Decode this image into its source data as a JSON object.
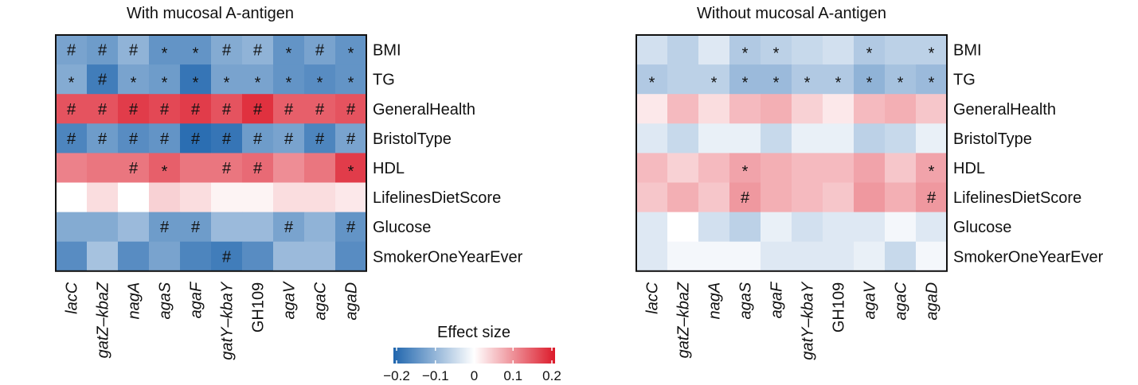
{
  "chart_data": [
    {
      "type": "heatmap",
      "title": "With mucosal A-antigen",
      "columns": [
        "lacC",
        "gatZ–kbaZ",
        "nagA",
        "agaS",
        "agaF",
        "gatY–kbaY",
        "GH109",
        "agaV",
        "agaC",
        "agaD"
      ],
      "column_italic": [
        true,
        true,
        true,
        true,
        true,
        true,
        false,
        true,
        true,
        true
      ],
      "rows": [
        "BMI",
        "TG",
        "GeneralHealth",
        "BristolType",
        "HDL",
        "LifelinesDietScore",
        "Glucose",
        "SmokerOneYearEver"
      ],
      "values": [
        [
          -0.12,
          -0.13,
          -0.1,
          -0.14,
          -0.14,
          -0.11,
          -0.1,
          -0.14,
          -0.12,
          -0.14
        ],
        [
          -0.11,
          -0.17,
          -0.12,
          -0.13,
          -0.18,
          -0.12,
          -0.12,
          -0.14,
          -0.15,
          -0.14
        ],
        [
          0.15,
          0.15,
          0.17,
          0.16,
          0.17,
          0.15,
          0.18,
          0.14,
          0.14,
          0.15
        ],
        [
          -0.16,
          -0.13,
          -0.15,
          -0.14,
          -0.19,
          -0.18,
          -0.13,
          -0.12,
          -0.16,
          -0.12
        ],
        [
          0.11,
          0.12,
          0.12,
          0.14,
          0.12,
          0.12,
          0.13,
          0.1,
          0.12,
          0.17
        ],
        [
          0.0,
          0.03,
          0.0,
          0.04,
          0.03,
          0.01,
          0.01,
          0.03,
          0.03,
          0.02
        ],
        [
          -0.11,
          -0.11,
          -0.09,
          -0.13,
          -0.13,
          -0.09,
          -0.09,
          -0.12,
          -0.1,
          -0.14
        ],
        [
          -0.15,
          -0.08,
          -0.15,
          -0.12,
          -0.16,
          -0.17,
          -0.15,
          -0.09,
          -0.09,
          -0.15
        ]
      ],
      "marks": [
        [
          "#",
          "#",
          "#",
          "*",
          "*",
          "#",
          "#",
          "*",
          "#",
          "*"
        ],
        [
          "*",
          "#",
          "*",
          "*",
          "*",
          "*",
          "*",
          "*",
          "*",
          "*"
        ],
        [
          "#",
          "#",
          "#",
          "#",
          "#",
          "#",
          "#",
          "#",
          "#",
          "#"
        ],
        [
          "#",
          "#",
          "#",
          "#",
          "#",
          "#",
          "#",
          "#",
          "#",
          "#"
        ],
        [
          "",
          "",
          "#",
          "*",
          "",
          "#",
          "#",
          "",
          "",
          "*"
        ],
        [
          "",
          "",
          "",
          "",
          "",
          "",
          "",
          "",
          "",
          ""
        ],
        [
          "",
          "",
          "",
          "#",
          "#",
          "",
          "",
          "#",
          "",
          "#"
        ],
        [
          "",
          "",
          "",
          "",
          "",
          "#",
          "",
          "",
          "",
          ""
        ]
      ]
    },
    {
      "type": "heatmap",
      "title": "Without mucosal A-antigen",
      "columns": [
        "lacC",
        "gatZ–kbaZ",
        "nagA",
        "agaS",
        "agaF",
        "gatY–kbaY",
        "GH109",
        "agaV",
        "agaC",
        "agaD"
      ],
      "column_italic": [
        true,
        true,
        true,
        true,
        true,
        true,
        false,
        true,
        true,
        true
      ],
      "rows": [
        "BMI",
        "TG",
        "GeneralHealth",
        "BristolType",
        "HDL",
        "LifelinesDietScore",
        "Glucose",
        "SmokerOneYearEver"
      ],
      "values": [
        [
          -0.04,
          -0.06,
          -0.03,
          -0.07,
          -0.06,
          -0.05,
          -0.04,
          -0.07,
          -0.06,
          -0.06
        ],
        [
          -0.07,
          -0.06,
          -0.06,
          -0.09,
          -0.09,
          -0.07,
          -0.07,
          -0.1,
          -0.08,
          -0.09
        ],
        [
          0.02,
          0.06,
          0.03,
          0.06,
          0.07,
          0.04,
          0.02,
          0.06,
          0.07,
          0.05
        ],
        [
          -0.03,
          -0.05,
          -0.02,
          -0.02,
          -0.05,
          -0.02,
          -0.02,
          -0.06,
          -0.05,
          -0.02
        ],
        [
          0.06,
          0.04,
          0.06,
          0.08,
          0.07,
          0.06,
          0.06,
          0.08,
          0.05,
          0.08
        ],
        [
          0.05,
          0.07,
          0.05,
          0.09,
          0.07,
          0.06,
          0.05,
          0.09,
          0.07,
          0.09
        ],
        [
          -0.03,
          0.0,
          -0.04,
          -0.06,
          -0.02,
          -0.04,
          -0.03,
          -0.03,
          -0.01,
          -0.03
        ],
        [
          -0.03,
          -0.01,
          -0.01,
          -0.01,
          -0.03,
          -0.03,
          -0.03,
          -0.02,
          -0.05,
          -0.01
        ]
      ],
      "marks": [
        [
          "",
          "",
          "",
          "*",
          "*",
          "",
          "",
          "*",
          "",
          "*"
        ],
        [
          "*",
          "",
          "*",
          "*",
          "*",
          "*",
          "*",
          "*",
          "*",
          "*"
        ],
        [
          "",
          "",
          "",
          "",
          "",
          "",
          "",
          "",
          "",
          ""
        ],
        [
          "",
          "",
          "",
          "",
          "",
          "",
          "",
          "",
          "",
          ""
        ],
        [
          "",
          "",
          "",
          "*",
          "",
          "",
          "",
          "",
          "",
          "*"
        ],
        [
          "",
          "",
          "",
          "#",
          "",
          "",
          "",
          "",
          "",
          "#"
        ],
        [
          "",
          "",
          "",
          "",
          "",
          "",
          "",
          "",
          "",
          ""
        ],
        [
          "",
          "",
          "",
          "",
          "",
          "",
          "",
          "",
          "",
          ""
        ]
      ]
    }
  ],
  "colorbar": {
    "title": "Effect size",
    "range": [
      -0.2,
      0.2
    ],
    "ticks": [
      -0.2,
      -0.1,
      0,
      0.1,
      0.2
    ],
    "tick_labels": [
      "−0.2",
      "−0.1",
      "0",
      "0.1",
      "0.2"
    ],
    "colors": {
      "low": "#2066ae",
      "mid": "#ffffff",
      "high": "#dc1a2a"
    }
  }
}
